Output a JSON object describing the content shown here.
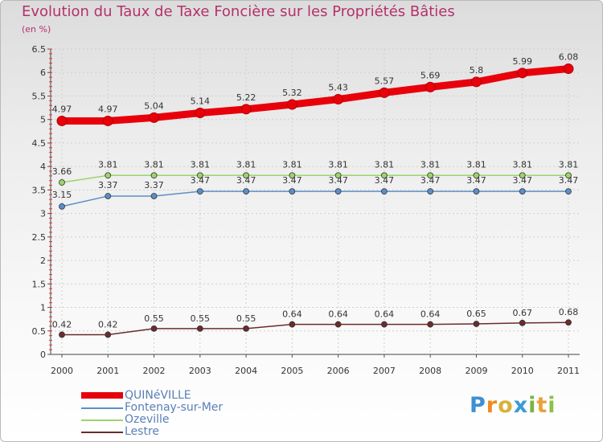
{
  "header": {
    "title": "Evolution du Taux de Taxe Foncière sur les Propriétés Bâties",
    "unit": "(en %)"
  },
  "brand": {
    "letters": [
      "P",
      "r",
      "o",
      "x",
      "i",
      "t",
      "i"
    ],
    "colors": [
      "#3f8fd2",
      "#ef8a1f",
      "#d8b13a",
      "#3b9ad6",
      "#7cb342",
      "#e9a23b",
      "#8cc04a"
    ]
  },
  "chart_data": {
    "type": "line",
    "title": "Evolution du Taux de Taxe Foncière sur les Propriétés Bâties",
    "ylabel": "(en %)",
    "xlabel": "",
    "ylim": [
      0,
      6.5
    ],
    "y_ticks": [
      "0",
      "0.5",
      "1",
      "1.5",
      "2",
      "2.5",
      "3",
      "3.5",
      "4",
      "4.5",
      "5",
      "5.5",
      "6",
      "6.5"
    ],
    "categories": [
      "2000",
      "2001",
      "2002",
      "2003",
      "2004",
      "2005",
      "2006",
      "2007",
      "2008",
      "2009",
      "2010",
      "2011"
    ],
    "series": [
      {
        "name": "QUINéVILLE",
        "color": "#e8000b",
        "values": [
          4.97,
          4.97,
          5.04,
          5.14,
          5.22,
          5.32,
          5.43,
          5.57,
          5.69,
          5.8,
          5.99,
          6.08
        ],
        "labels": [
          "4.97",
          "4.97",
          "5.04",
          "5.14",
          "5.22",
          "5.32",
          "5.43",
          "5.57",
          "5.69",
          "5.8",
          "5.99",
          "6.08"
        ]
      },
      {
        "name": "Fontenay-sur-Mer",
        "color": "#5b8fc7",
        "values": [
          3.15,
          3.37,
          3.37,
          3.47,
          3.47,
          3.47,
          3.47,
          3.47,
          3.47,
          3.47,
          3.47,
          3.47
        ],
        "labels": [
          "3.15",
          "3.37",
          "3.37",
          "3.47",
          "3.47",
          "3.47",
          "3.47",
          "3.47",
          "3.47",
          "3.47",
          "3.47",
          "3.47"
        ]
      },
      {
        "name": "Ozeville",
        "color": "#9bd46c",
        "values": [
          3.66,
          3.81,
          3.81,
          3.81,
          3.81,
          3.81,
          3.81,
          3.81,
          3.81,
          3.81,
          3.81,
          3.81
        ],
        "labels": [
          "3.66",
          "3.81",
          "3.81",
          "3.81",
          "3.81",
          "3.81",
          "3.81",
          "3.81",
          "3.81",
          "3.81",
          "3.81",
          "3.81"
        ]
      },
      {
        "name": "Lestre",
        "color": "#6b2c2c",
        "values": [
          0.42,
          0.42,
          0.55,
          0.55,
          0.55,
          0.64,
          0.64,
          0.64,
          0.64,
          0.65,
          0.67,
          0.68
        ],
        "labels": [
          "0.42",
          "0.42",
          "0.55",
          "0.55",
          "0.55",
          "0.64",
          "0.64",
          "0.64",
          "0.64",
          "0.65",
          "0.67",
          "0.68"
        ]
      }
    ]
  }
}
